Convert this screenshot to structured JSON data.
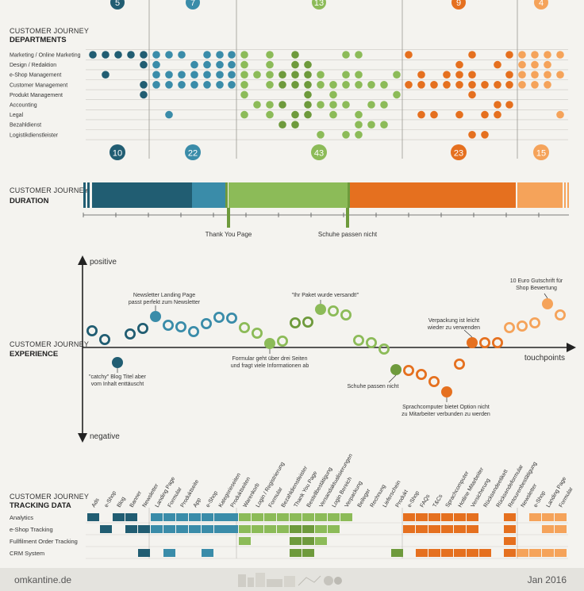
{
  "colors": {
    "dark": "#215d72",
    "teal": "#3a8ca9",
    "green": "#8cbb58",
    "darkgreen": "#6e9a3c",
    "orange": "#e5701f",
    "lightorange": "#f5a35a"
  },
  "departments": {
    "title": "CUSTOMER JOURNEY",
    "subtitle": "DEPARTMENTS",
    "rows": [
      "Marketing / Online Marketing",
      "Design / Redaktion",
      "e-Shop Management",
      "Customer Management",
      "Produkt Management",
      "Accounting",
      "Legal",
      "Bezahldienst",
      "Logistikdienstleister"
    ],
    "phase_top": [
      "5",
      "7",
      "13",
      "9",
      "4"
    ],
    "phase_bottom": [
      "10",
      "22",
      "43",
      "23",
      "15"
    ]
  },
  "duration": {
    "title": "CUSTOMER JOURNEY",
    "subtitle": "DURATION",
    "markers": [
      "Thank You Page",
      "Schuhe passen nicht"
    ]
  },
  "experience": {
    "title": "CUSTOMER JOURNEY",
    "subtitle": "EXPERIENCE",
    "positive": "positive",
    "negative": "negative",
    "xaxis": "touchpoints",
    "notes": [
      {
        "lines": [
          "Newsletter Landing Page",
          "passt perfekt zum Newsletter"
        ]
      },
      {
        "lines": [
          "\"catchy\" Blog Titel aber",
          "vom Inhalt enttäuscht"
        ]
      },
      {
        "lines": [
          "Formular geht über drei Seiten",
          "und fragt viele Informationen ab"
        ]
      },
      {
        "lines": [
          "\"Ihr Paket wurde versandt!\""
        ]
      },
      {
        "lines": [
          "Schuhe passen nicht"
        ]
      },
      {
        "lines": [
          "Verpackung ist leicht",
          "wieder zu verwenden"
        ]
      },
      {
        "lines": [
          "Sprachcomputer bietet Option nicht",
          "zu Mitarbeiter verbunden zu werden"
        ]
      },
      {
        "lines": [
          "10 Euro Gutschrift für",
          "Shop Bewertung"
        ]
      }
    ]
  },
  "tracking": {
    "title": "CUSTOMER JOURNEY",
    "subtitle": "TRACKING DATA",
    "systems": [
      "Analytics",
      "e-Shop Tracking",
      "Fullfilment Order Tracking",
      "CRM System"
    ],
    "touchpoints": [
      "Ads",
      "e-Shop",
      "Blog",
      "Banner",
      "Newsletter",
      "Landing Page",
      "Formular",
      "Produktseite",
      "App",
      "e-Shop",
      "Kategorieseiten",
      "Produktseiten",
      "Warenkorb",
      "Login / Registrierung",
      "Formular",
      "Bezahldienstleister",
      "Thank You Page",
      "Bestellbestätigung",
      "Versandaktualisierungen",
      "Login Bereich",
      "Verpackung",
      "Beileger",
      "Rechnung",
      "Lieferschein",
      "Produkt",
      "e-Shop",
      "FAQs",
      "T&Cs",
      "Sprachcomputer",
      "Hotline Mitarbeiter",
      "Versicherung",
      "Rücksendeetikett",
      "Rücksendeformular",
      "Retourenbestätigung",
      "Newsletter",
      "e-Shop",
      "Landing Page",
      "Formular"
    ]
  },
  "footer": {
    "left": "omkantine.de",
    "right": "Jan 2016"
  }
}
